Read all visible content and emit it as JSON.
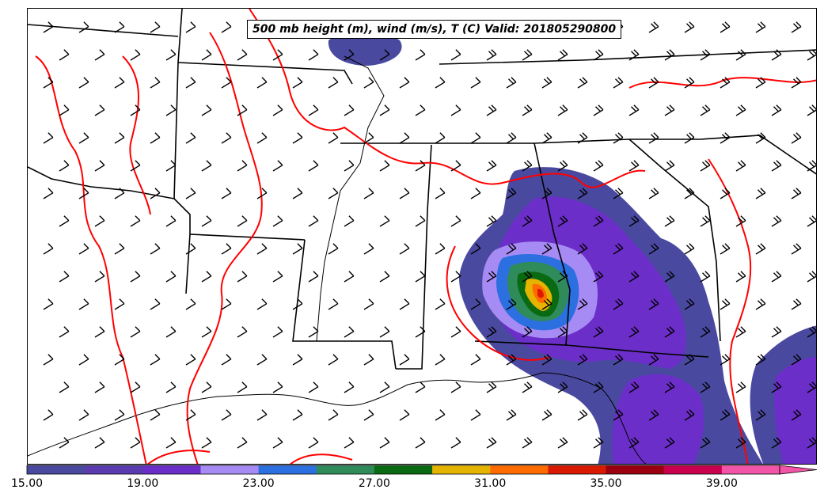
{
  "title": "500 mb height (m), wind (m/s), T (C) Valid: 201805290800",
  "colorbar": {
    "colors": [
      "#4a49a0",
      "#5a3cb0",
      "#6b2ec8",
      "#a78bf5",
      "#2c6fe0",
      "#2f8b5a",
      "#0a6a12",
      "#e5b400",
      "#ff6b00",
      "#d91a00",
      "#9a0010",
      "#c8004e",
      "#f255a8"
    ],
    "tick_labels": [
      "15.00",
      "19.00",
      "23.00",
      "27.00",
      "31.00",
      "35.00",
      "39.00"
    ]
  },
  "map_colors": {
    "height_contour": "#ff0000",
    "state_borders": "#000000",
    "wind_barb": "#000000"
  }
}
